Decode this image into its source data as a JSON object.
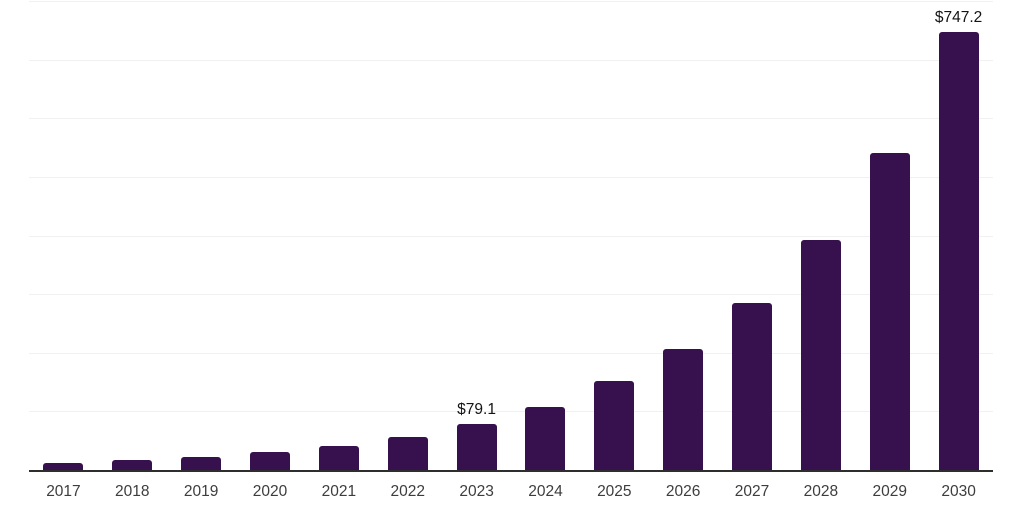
{
  "chart_data": {
    "type": "bar",
    "categories": [
      "2017",
      "2018",
      "2019",
      "2020",
      "2021",
      "2022",
      "2023",
      "2024",
      "2025",
      "2026",
      "2027",
      "2028",
      "2029",
      "2030"
    ],
    "values": [
      12.7,
      16.3,
      21.8,
      30.8,
      41.2,
      56.4,
      79.1,
      107.9,
      151.3,
      207.0,
      284.7,
      392.5,
      541.0,
      747.2
    ],
    "value_labels": [
      null,
      null,
      null,
      null,
      null,
      null,
      "$79.1",
      null,
      null,
      null,
      null,
      null,
      null,
      "$747.2"
    ],
    "title": "",
    "xlabel": "",
    "ylabel": "",
    "ylim": [
      0,
      800
    ],
    "gridline_step": 100,
    "grid": "horizontal",
    "legend_position": "none",
    "colors": {
      "bar": "#36114e",
      "axis_line": "#2e2e2e",
      "gridline": "#f1f1f1",
      "tick_label": "#3d3d3d",
      "value_label": "#141414",
      "background": "#ffffff"
    }
  }
}
